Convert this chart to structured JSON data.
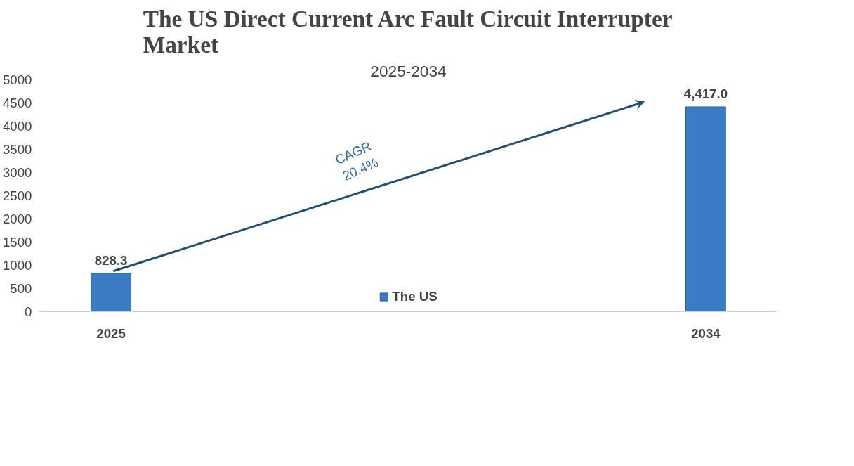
{
  "chart_data": {
    "type": "bar",
    "title": "The US Direct Current Arc Fault Circuit Interrupter Market",
    "subtitle": "2025-2034",
    "categories": [
      "2025",
      "2034"
    ],
    "series": [
      {
        "name": "The US",
        "color": "#3a7dc4",
        "values": [
          828.3,
          4417.0
        ],
        "value_labels": [
          "828.3",
          "4,417.0"
        ]
      }
    ],
    "ylim": [
      0,
      5000
    ],
    "yticks": [
      0,
      500,
      1000,
      1500,
      2000,
      2500,
      3000,
      3500,
      4000,
      4500,
      5000
    ],
    "grid": false,
    "legend": "bottom",
    "annotations": [
      "CAGR\n20.4%"
    ]
  }
}
